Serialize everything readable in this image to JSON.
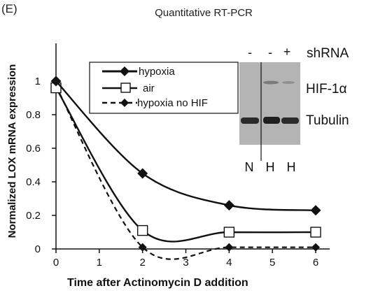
{
  "panel_label": "(E)",
  "chart_data": {
    "type": "line",
    "title": "Quantitative RT-PCR",
    "xlabel": "Time after Actinomycin D addition",
    "ylabel": "Normalized LOX mRNA expression",
    "xlim": [
      0,
      6
    ],
    "ylim": [
      0,
      1
    ],
    "x_ticks": [
      "0",
      "1",
      "2",
      "3",
      "4",
      "5",
      "6"
    ],
    "y_ticks": [
      "0",
      "0.2",
      "0.4",
      "0.6",
      "0.8",
      "1"
    ],
    "grid": false,
    "legend_position": "top-left",
    "series": [
      {
        "name": "hypoxia",
        "marker": "diamond-filled",
        "line": "solid",
        "x": [
          0,
          2,
          4,
          6
        ],
        "y": [
          1.0,
          0.45,
          0.26,
          0.23
        ]
      },
      {
        "name": "air",
        "marker": "square-open",
        "line": "solid",
        "x": [
          0,
          2,
          4,
          6
        ],
        "y": [
          0.96,
          0.11,
          0.1,
          0.1
        ]
      },
      {
        "name": "hypoxia no HIF",
        "marker": "diamond-filled",
        "line": "dashed",
        "x": [
          0,
          2,
          4,
          6
        ],
        "y": [
          0.97,
          0.01,
          0.01,
          0.01
        ]
      }
    ]
  },
  "blot": {
    "signs": [
      "-",
      "-",
      "+"
    ],
    "shrna_label": "shRNA",
    "band_labels": [
      "HIF-1α",
      "Tubulin"
    ],
    "lane_labels": [
      "N",
      "H",
      "H"
    ]
  },
  "colors": {
    "ink": "#111111",
    "blot_bg": "#b4b4b4",
    "band": "#2a2a2a"
  }
}
